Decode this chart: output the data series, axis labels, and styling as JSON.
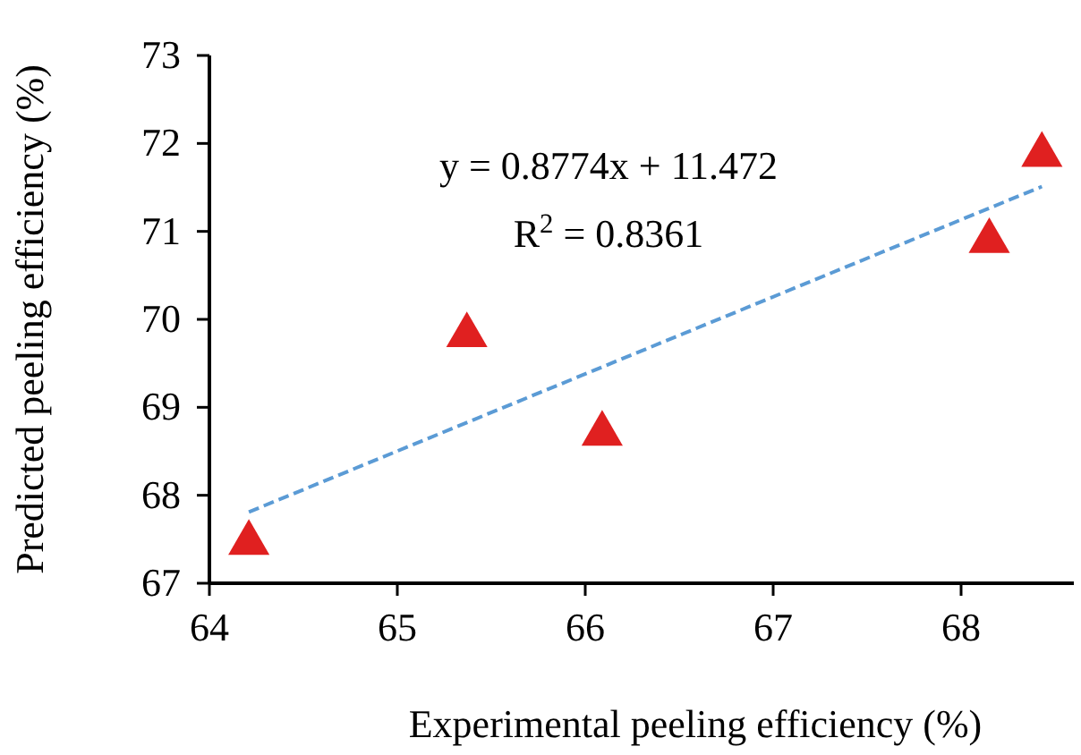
{
  "chart_data": {
    "type": "scatter",
    "xlabel": "Experimental peeling efficiency (%)",
    "ylabel": "Predicted peeling efficiency (%)",
    "xlim": [
      64,
      68.6
    ],
    "xticks": [
      64,
      65,
      66,
      67,
      68
    ],
    "ylim": [
      67,
      73
    ],
    "yticks": [
      67,
      68,
      69,
      70,
      71,
      72,
      73
    ],
    "grid": false,
    "annotations": [
      "y = 0.8774x + 11.472",
      "R$^{2}$ = 0.8361"
    ],
    "series": [
      {
        "color": "#e02020",
        "marker": "triangle",
        "x": [
          64.21,
          65.37,
          66.09,
          68.15,
          68.43
        ],
        "values": [
          67.5,
          69.86,
          68.74,
          70.93,
          71.91
        ]
      },
      {
        "type": "line",
        "color": "#5b9bd5",
        "marker": "none",
        "line_style": "dashed",
        "x": [
          64.21,
          68.43
        ],
        "values": [
          67.81,
          71.51
        ]
      }
    ]
  }
}
